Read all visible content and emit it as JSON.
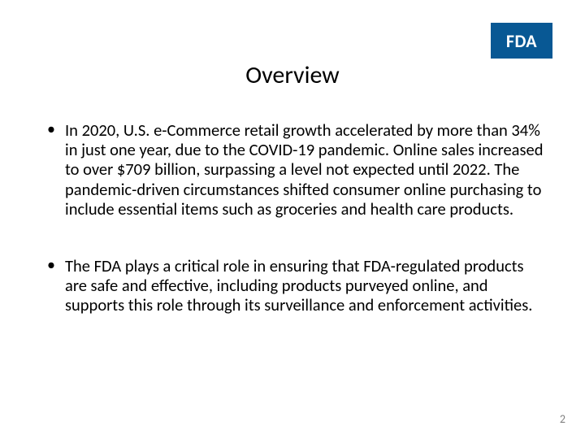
{
  "logo": {
    "text": "FDA",
    "bg": "#085894",
    "fg": "#ffffff"
  },
  "title": "Overview",
  "bullets": [
    "In 2020, U.S. e-Commerce retail growth accelerated by more than 34% in just one year, due to the COVID-19 pandemic. Online sales increased to over $709 billion, surpassing a level not expected until 2022.  The pandemic-driven circumstances shifted consumer online purchasing to include essential items such as groceries and health care products.",
    "The FDA plays a critical role in ensuring that FDA-regulated products are safe and effective, including products purveyed online, and supports this role through its surveillance and enforcement activities."
  ],
  "page_number": "2",
  "colors": {
    "background": "#ffffff",
    "text": "#000000",
    "pagenum": "#808080"
  },
  "typography": {
    "title_fontsize": 30,
    "body_fontsize": 20.5,
    "body_lineheight": 1.18
  }
}
